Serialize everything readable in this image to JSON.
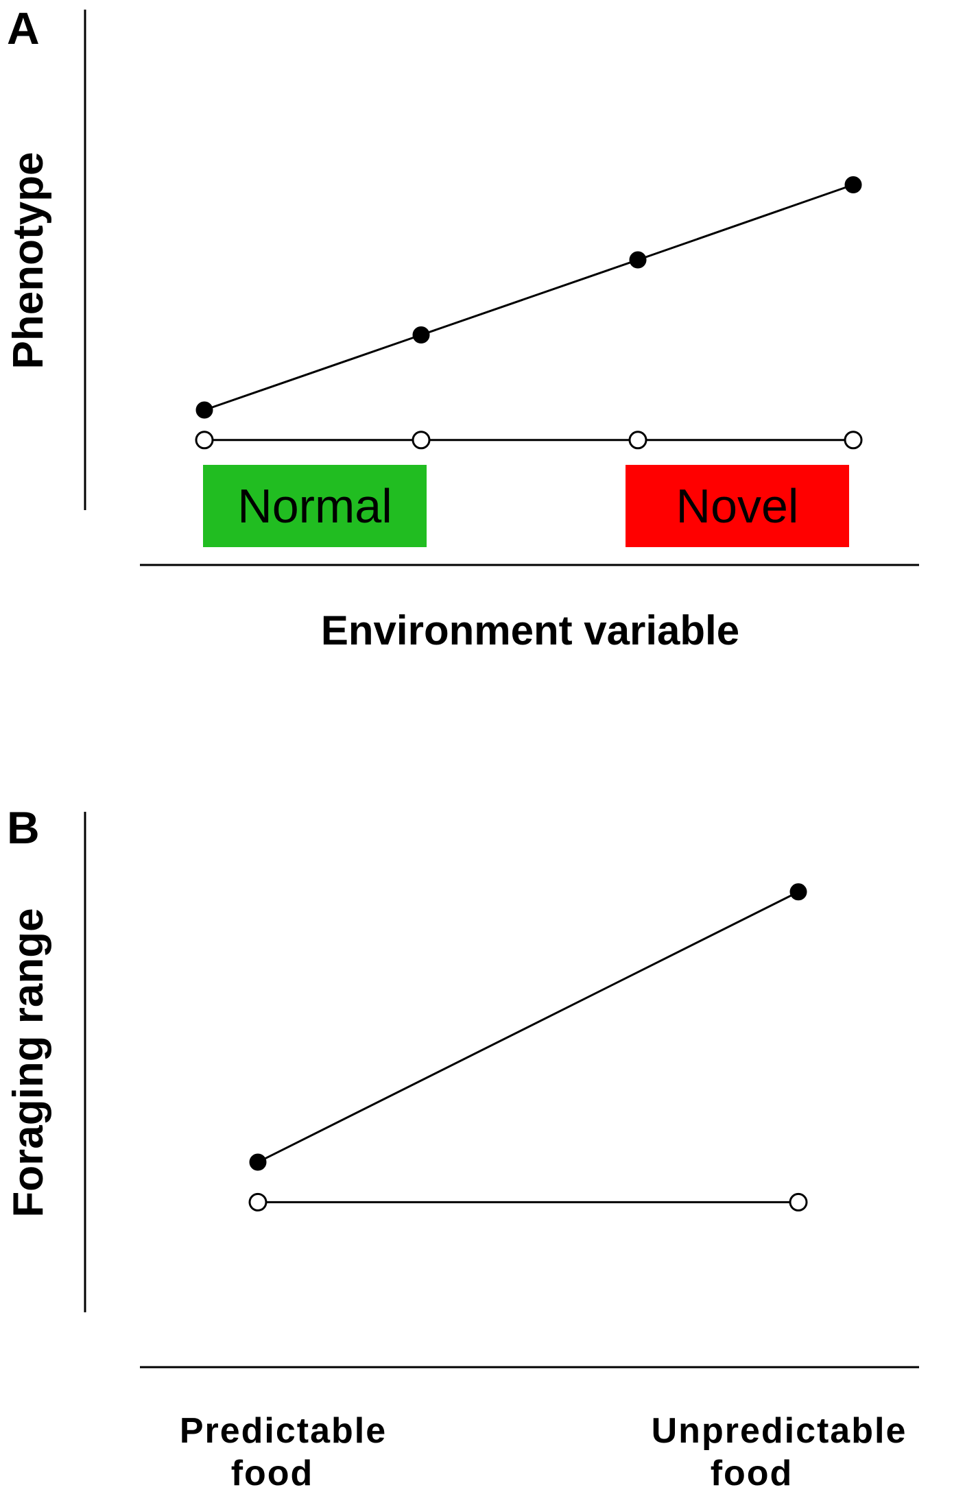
{
  "chart_data": [
    {
      "panel": "A",
      "type": "line",
      "ylabel": "Phenotype",
      "xlabel": "Environment variable",
      "x": [
        1,
        2,
        3,
        4
      ],
      "ylim": [
        0,
        10
      ],
      "series": [
        {
          "marker": "filled",
          "values": [
            2.0,
            3.5,
            5.0,
            6.5
          ]
        },
        {
          "marker": "open",
          "values": [
            1.4,
            1.4,
            1.4,
            1.4
          ]
        }
      ],
      "environments": [
        {
          "label": "Normal",
          "color": "#21bd21"
        },
        {
          "label": "Novel",
          "color": "#ff0000"
        }
      ],
      "grid": false
    },
    {
      "panel": "B",
      "type": "line",
      "ylabel": "Foraging range",
      "xlabel": "",
      "categories": [
        {
          "line1": "Predictable",
          "line2": "food"
        },
        {
          "line1": "Unpredictable",
          "line2": "food"
        }
      ],
      "ylim": [
        0,
        10
      ],
      "series": [
        {
          "marker": "filled",
          "values": [
            3.0,
            8.4
          ]
        },
        {
          "marker": "open",
          "values": [
            2.2,
            2.2
          ]
        }
      ],
      "grid": false
    }
  ]
}
